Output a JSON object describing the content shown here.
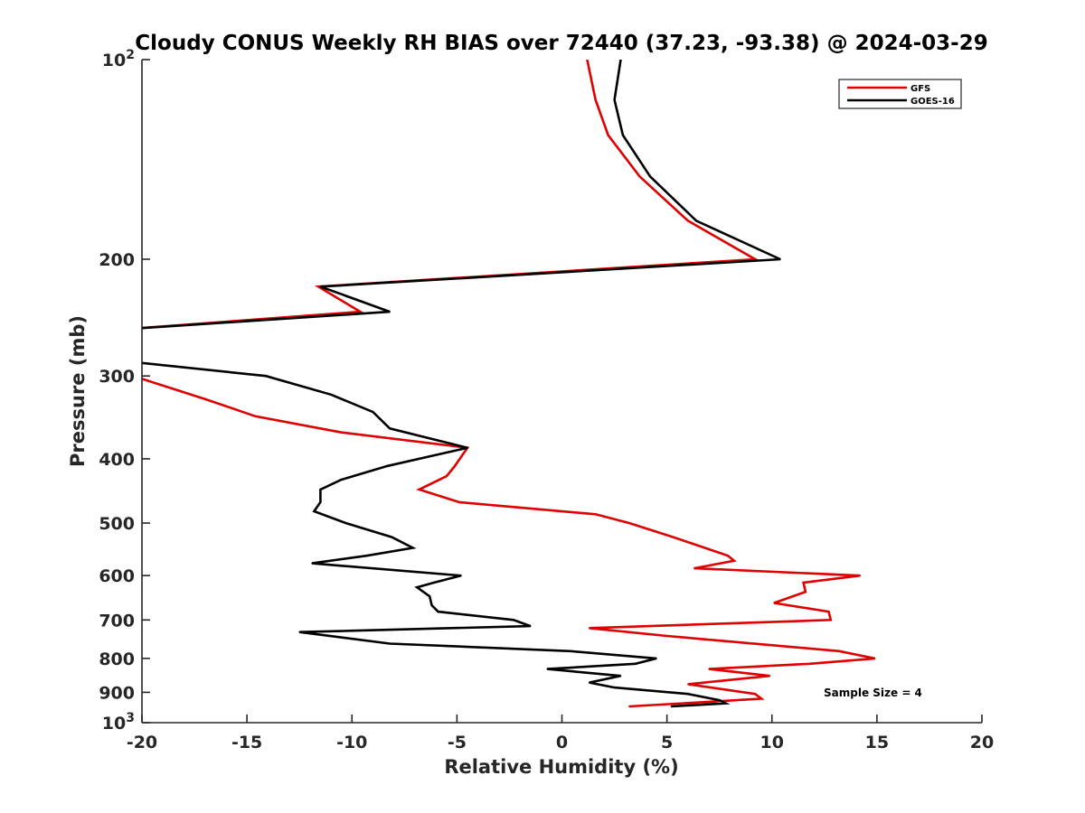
{
  "chart_data": {
    "type": "line",
    "title": "Cloudy CONUS Weekly RH BIAS over 72440 (37.23, -93.38) @ 2024-03-29",
    "xlabel": "Relative Humidity (%)",
    "ylabel": "Pressure (mb)",
    "xlim": [
      -20,
      20
    ],
    "ylim": [
      100,
      1000
    ],
    "y_scale": "log",
    "y_reversed": true,
    "x_ticks": [
      "-20",
      "-15",
      "-10",
      "-5",
      "0",
      "5",
      "10",
      "15",
      "20"
    ],
    "y_ticks": [
      {
        "value": 100,
        "base": "10",
        "exp": "2"
      },
      {
        "value": 200,
        "label": "200"
      },
      {
        "value": 300,
        "label": "300"
      },
      {
        "value": 400,
        "label": "400"
      },
      {
        "value": 500,
        "label": "500"
      },
      {
        "value": 600,
        "label": "600"
      },
      {
        "value": 700,
        "label": "700"
      },
      {
        "value": 800,
        "label": "800"
      },
      {
        "value": 900,
        "label": "900"
      },
      {
        "value": 1000,
        "base": "10",
        "exp": "3"
      }
    ],
    "legend_position": "top-right",
    "grid": false,
    "annotation": "Sample Size = 4",
    "series": [
      {
        "name": "GFS",
        "color": "#e00000",
        "points": [
          [
            1.2,
            100
          ],
          [
            1.6,
            115
          ],
          [
            2.2,
            130
          ],
          [
            3.7,
            150
          ],
          [
            6.0,
            175
          ],
          [
            9.2,
            200
          ],
          [
            -11.6,
            220
          ],
          [
            -9.6,
            240
          ],
          [
            -20.8,
            255
          ],
          [
            -21.0,
            296
          ],
          [
            -17.0,
            325
          ],
          [
            -14.6,
            345
          ],
          [
            -10.5,
            365
          ],
          [
            -4.5,
            385
          ],
          [
            -5.1,
            410
          ],
          [
            -5.5,
            425
          ],
          [
            -6.8,
            445
          ],
          [
            -4.9,
            465
          ],
          [
            1.6,
            485
          ],
          [
            3.2,
            500
          ],
          [
            5.3,
            525
          ],
          [
            7.9,
            560
          ],
          [
            8.2,
            570
          ],
          [
            6.3,
            585
          ],
          [
            14.2,
            600
          ],
          [
            11.5,
            615
          ],
          [
            11.6,
            635
          ],
          [
            10.1,
            660
          ],
          [
            12.7,
            680
          ],
          [
            12.8,
            700
          ],
          [
            1.3,
            720
          ],
          [
            5.0,
            740
          ],
          [
            13.2,
            780
          ],
          [
            14.9,
            800
          ],
          [
            11.8,
            815
          ],
          [
            7.0,
            830
          ],
          [
            9.9,
            850
          ],
          [
            6.0,
            875
          ],
          [
            9.2,
            905
          ],
          [
            9.5,
            920
          ],
          [
            7.0,
            930
          ],
          [
            3.2,
            945
          ]
        ]
      },
      {
        "name": "GOES-16",
        "color": "#000000",
        "points": [
          [
            2.8,
            100
          ],
          [
            2.5,
            115
          ],
          [
            2.9,
            130
          ],
          [
            4.2,
            150
          ],
          [
            6.4,
            175
          ],
          [
            10.4,
            200
          ],
          [
            -11.5,
            220
          ],
          [
            -8.2,
            240
          ],
          [
            -20.8,
            255
          ],
          [
            -20.8,
            285
          ],
          [
            -14.1,
            300
          ],
          [
            -11.0,
            320
          ],
          [
            -9.0,
            340
          ],
          [
            -8.2,
            360
          ],
          [
            -4.5,
            385
          ],
          [
            -8.3,
            410
          ],
          [
            -10.5,
            430
          ],
          [
            -11.5,
            445
          ],
          [
            -11.5,
            465
          ],
          [
            -11.8,
            480
          ],
          [
            -10.3,
            500
          ],
          [
            -8.1,
            525
          ],
          [
            -7.1,
            545
          ],
          [
            -9.3,
            560
          ],
          [
            -11.9,
            575
          ],
          [
            -4.8,
            600
          ],
          [
            -6.1,
            615
          ],
          [
            -6.9,
            625
          ],
          [
            -6.3,
            645
          ],
          [
            -6.2,
            665
          ],
          [
            -5.9,
            680
          ],
          [
            -2.3,
            700
          ],
          [
            -1.5,
            715
          ],
          [
            -12.5,
            730
          ],
          [
            -8.2,
            760
          ],
          [
            0.4,
            780
          ],
          [
            4.5,
            800
          ],
          [
            3.5,
            815
          ],
          [
            -0.7,
            830
          ],
          [
            2.8,
            850
          ],
          [
            1.3,
            870
          ],
          [
            2.5,
            885
          ],
          [
            6.0,
            905
          ],
          [
            7.5,
            925
          ],
          [
            7.8,
            935
          ],
          [
            5.2,
            945
          ]
        ]
      }
    ]
  }
}
